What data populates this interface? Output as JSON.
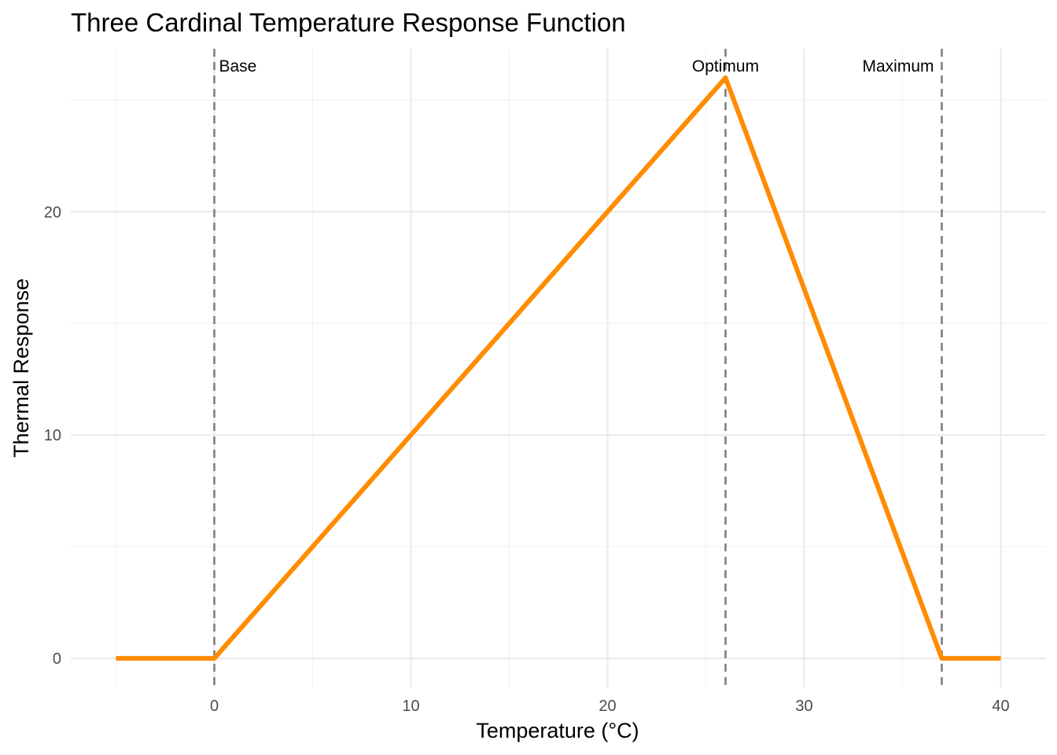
{
  "chart_data": {
    "type": "line",
    "title": "Three Cardinal Temperature Response Function",
    "xlabel": "Temperature (°C)",
    "ylabel": "Thermal Response",
    "xlim": [
      -7.3,
      42.3
    ],
    "ylim": [
      -1.3,
      27.3
    ],
    "x_ticks": [
      0,
      10,
      20,
      30,
      40
    ],
    "x_tick_labels": [
      "0",
      "10",
      "20",
      "30",
      "40"
    ],
    "y_ticks": [
      0,
      10,
      20
    ],
    "y_tick_labels": [
      "0",
      "10",
      "20"
    ],
    "x_minor_ticks": [
      -5,
      5,
      15,
      25,
      35
    ],
    "y_minor_ticks": [
      5,
      15,
      25
    ],
    "grid": true,
    "legend": "none",
    "series": [
      {
        "color": "#FF8C00",
        "x": [
          -5,
          0,
          26,
          37,
          40
        ],
        "y": [
          0,
          0,
          26,
          0,
          0
        ]
      }
    ],
    "reference_lines": [
      {
        "x": 0,
        "label": "Base",
        "label_anchor": "start",
        "color": "#7f7f7f",
        "style": "dashed"
      },
      {
        "x": 26,
        "label": "Optimum",
        "label_anchor": "middle",
        "color": "#7f7f7f",
        "style": "dashed"
      },
      {
        "x": 37,
        "label": "Maximum",
        "label_anchor": "end",
        "color": "#7f7f7f",
        "style": "dashed"
      }
    ]
  }
}
